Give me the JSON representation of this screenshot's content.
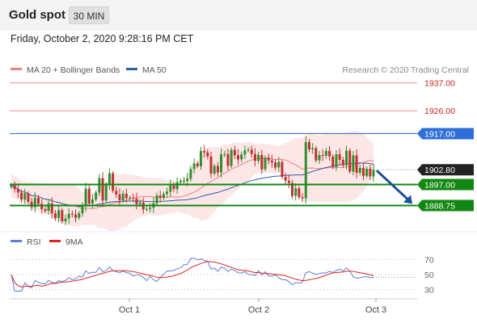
{
  "header": {
    "title": "Gold spot",
    "timeframe": "30 MIN",
    "datetime": "Friday, October 2, 2020 9:28:16 PM CET"
  },
  "chart_data": [
    {
      "type": "candlestick",
      "legend": [
        {
          "label": "MA 20 + Bollinger Bands",
          "color": "#f08080"
        },
        {
          "label": "MA 50",
          "color": "#2e5da8"
        }
      ],
      "watermark": "Research © 2020 Trading Central",
      "ylim": [
        1880,
        1941
      ],
      "levels": [
        {
          "value": 1937.0,
          "label": "1937.00",
          "role": "resistance",
          "color": "#f08a8a"
        },
        {
          "value": 1926.0,
          "label": "1926.00",
          "role": "resistance",
          "color": "#f08a8a"
        },
        {
          "value": 1917.0,
          "label": "1917.00",
          "role": "pivot",
          "color": "#2f6fd8"
        },
        {
          "value": 1897.0,
          "label": "1897.00",
          "role": "support",
          "color": "#118811"
        },
        {
          "value": 1888.75,
          "label": "1888.75",
          "role": "support",
          "color": "#118811"
        }
      ],
      "last_price": {
        "value": 1902.8,
        "label": "1902.80",
        "color": "#222222"
      },
      "forecast_arrow": {
        "from": 1902.8,
        "to": 1888.75,
        "direction": "down",
        "color": "#1f4e9a"
      },
      "close": [
        1896.6,
        1895.2,
        1893.8,
        1891.1,
        1893.5,
        1890.2,
        1888.1,
        1891.7,
        1889.4,
        1887.3,
        1886.6,
        1889.6,
        1885.7,
        1883.8,
        1886.9,
        1882.5,
        1883.6,
        1885.5,
        1885.2,
        1883.9,
        1885.7,
        1888.4,
        1895.4,
        1889.5,
        1891.1,
        1893.8,
        1899.5,
        1890.7,
        1896.7,
        1901.4,
        1894.5,
        1893.1,
        1890.8,
        1893.4,
        1891.6,
        1891.8,
        1891.5,
        1889.3,
        1889.9,
        1887.2,
        1887.4,
        1887.9,
        1889.6,
        1892.6,
        1891.7,
        1893.3,
        1894.2,
        1896.6,
        1895.2,
        1897.9,
        1898.4,
        1898.4,
        1899.3,
        1903.1,
        1905.3,
        1904.2,
        1910.2,
        1909.6,
        1908.0,
        1901.3,
        1904.3,
        1901.7,
        1908.8,
        1909.0,
        1904.3,
        1910.6,
        1908.5,
        1906.9,
        1908.8,
        1910.4,
        1910.7,
        1909.0,
        1906.3,
        1908.6,
        1903.0,
        1907.6,
        1906.4,
        1905.7,
        1903.7,
        1905.9,
        1900.0,
        1898.5,
        1897.6,
        1892.5,
        1895.5,
        1892.0,
        1891.6,
        1913.7,
        1910.8,
        1911.3,
        1906.5,
        1908.6,
        1908.3,
        1910.2,
        1908.0,
        1903.9,
        1908.9,
        1906.7,
        1904.6,
        1910.3,
        1902.1,
        1908.5,
        1901.6,
        1903.5,
        1900.4,
        1903.2,
        1900.2,
        1902.8
      ],
      "rsi_panel": {
        "legend": [
          {
            "label": "RSI",
            "color": "#5b7fd6"
          },
          {
            "label": "9MA",
            "color": "#e02020"
          }
        ],
        "ylim": [
          20,
          80
        ],
        "levels": [
          70,
          50,
          30
        ],
        "level_labels": [
          "70",
          "50",
          "30"
        ]
      },
      "x_tick_labels": [
        "Oct 1",
        "Oct 2",
        "Oct 3"
      ]
    }
  ]
}
